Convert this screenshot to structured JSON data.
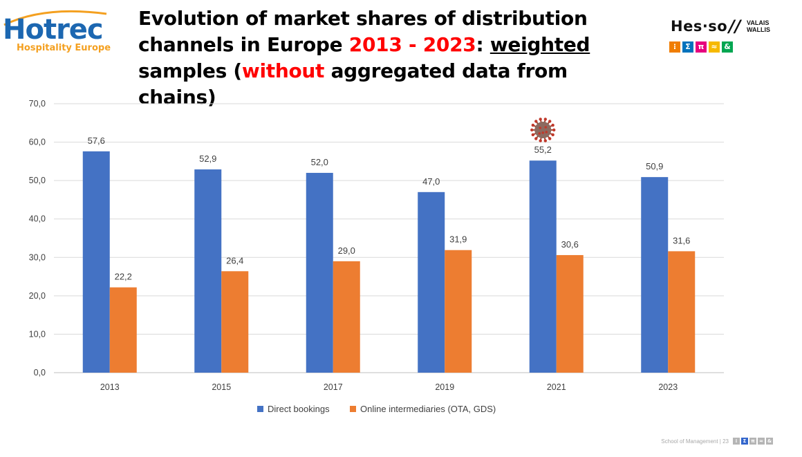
{
  "slide": {
    "title_parts": {
      "p1": "Evolution of market shares of distribution",
      "p2": "channels in Europe ",
      "p3_red": "2013 - 2023",
      "p4": ": ",
      "p5_underline": "weighted",
      "p6": "samples (",
      "p7_red": "without",
      "p8": " aggregated data from chains)"
    },
    "title_color_highlight": "#ff0000",
    "footer_text": "School of Management | 23"
  },
  "hotrec_logo": {
    "word": "Hotrec",
    "tagline": "Hospitality Europe",
    "color_primary": "#1c67b1",
    "color_secondary": "#f4a020"
  },
  "hesso_logo": {
    "word": "Hes·so",
    "slash": "//",
    "region_line1": "VALAIS",
    "region_line2": "WALLIS",
    "squares": [
      {
        "glyph": "⁝",
        "color": "#f07d00"
      },
      {
        "glyph": "Σ",
        "color": "#0072bc"
      },
      {
        "glyph": "π",
        "color": "#e6007e"
      },
      {
        "glyph": "≈",
        "color": "#f6b900"
      },
      {
        "glyph": "&",
        "color": "#00a651"
      }
    ],
    "footer_squares_colors": [
      "#b5b5b5",
      "#3366cc",
      "#b5b5b5",
      "#b5b5b5",
      "#b5b5b5"
    ]
  },
  "chart_data": {
    "type": "bar",
    "title": "",
    "xlabel": "",
    "ylabel": "",
    "categories": [
      "2013",
      "2015",
      "2017",
      "2019",
      "2021",
      "2023"
    ],
    "series": [
      {
        "name": "Direct bookings",
        "color": "#4472c4",
        "values": [
          57.6,
          52.9,
          52.0,
          47.0,
          55.2,
          50.9
        ],
        "labels": [
          "57,6",
          "52,9",
          "52,0",
          "47,0",
          "55,2",
          "50,9"
        ]
      },
      {
        "name": "Online intermediaries (OTA, GDS)",
        "color": "#ed7d31",
        "values": [
          22.2,
          26.4,
          29.0,
          31.9,
          30.6,
          31.6
        ],
        "labels": [
          "22,2",
          "26,4",
          "29,0",
          "31,9",
          "30,6",
          "31,6"
        ]
      }
    ],
    "ylim": [
      0,
      70
    ],
    "yticks": [
      0,
      10,
      20,
      30,
      40,
      50,
      60,
      70
    ],
    "ytick_labels": [
      "0,0",
      "10,0",
      "20,0",
      "30,0",
      "40,0",
      "50,0",
      "60,0",
      "70,0"
    ],
    "grid": true,
    "legend_position": "bottom",
    "annotation": {
      "category": "2021",
      "icon": "coronavirus-icon"
    }
  }
}
